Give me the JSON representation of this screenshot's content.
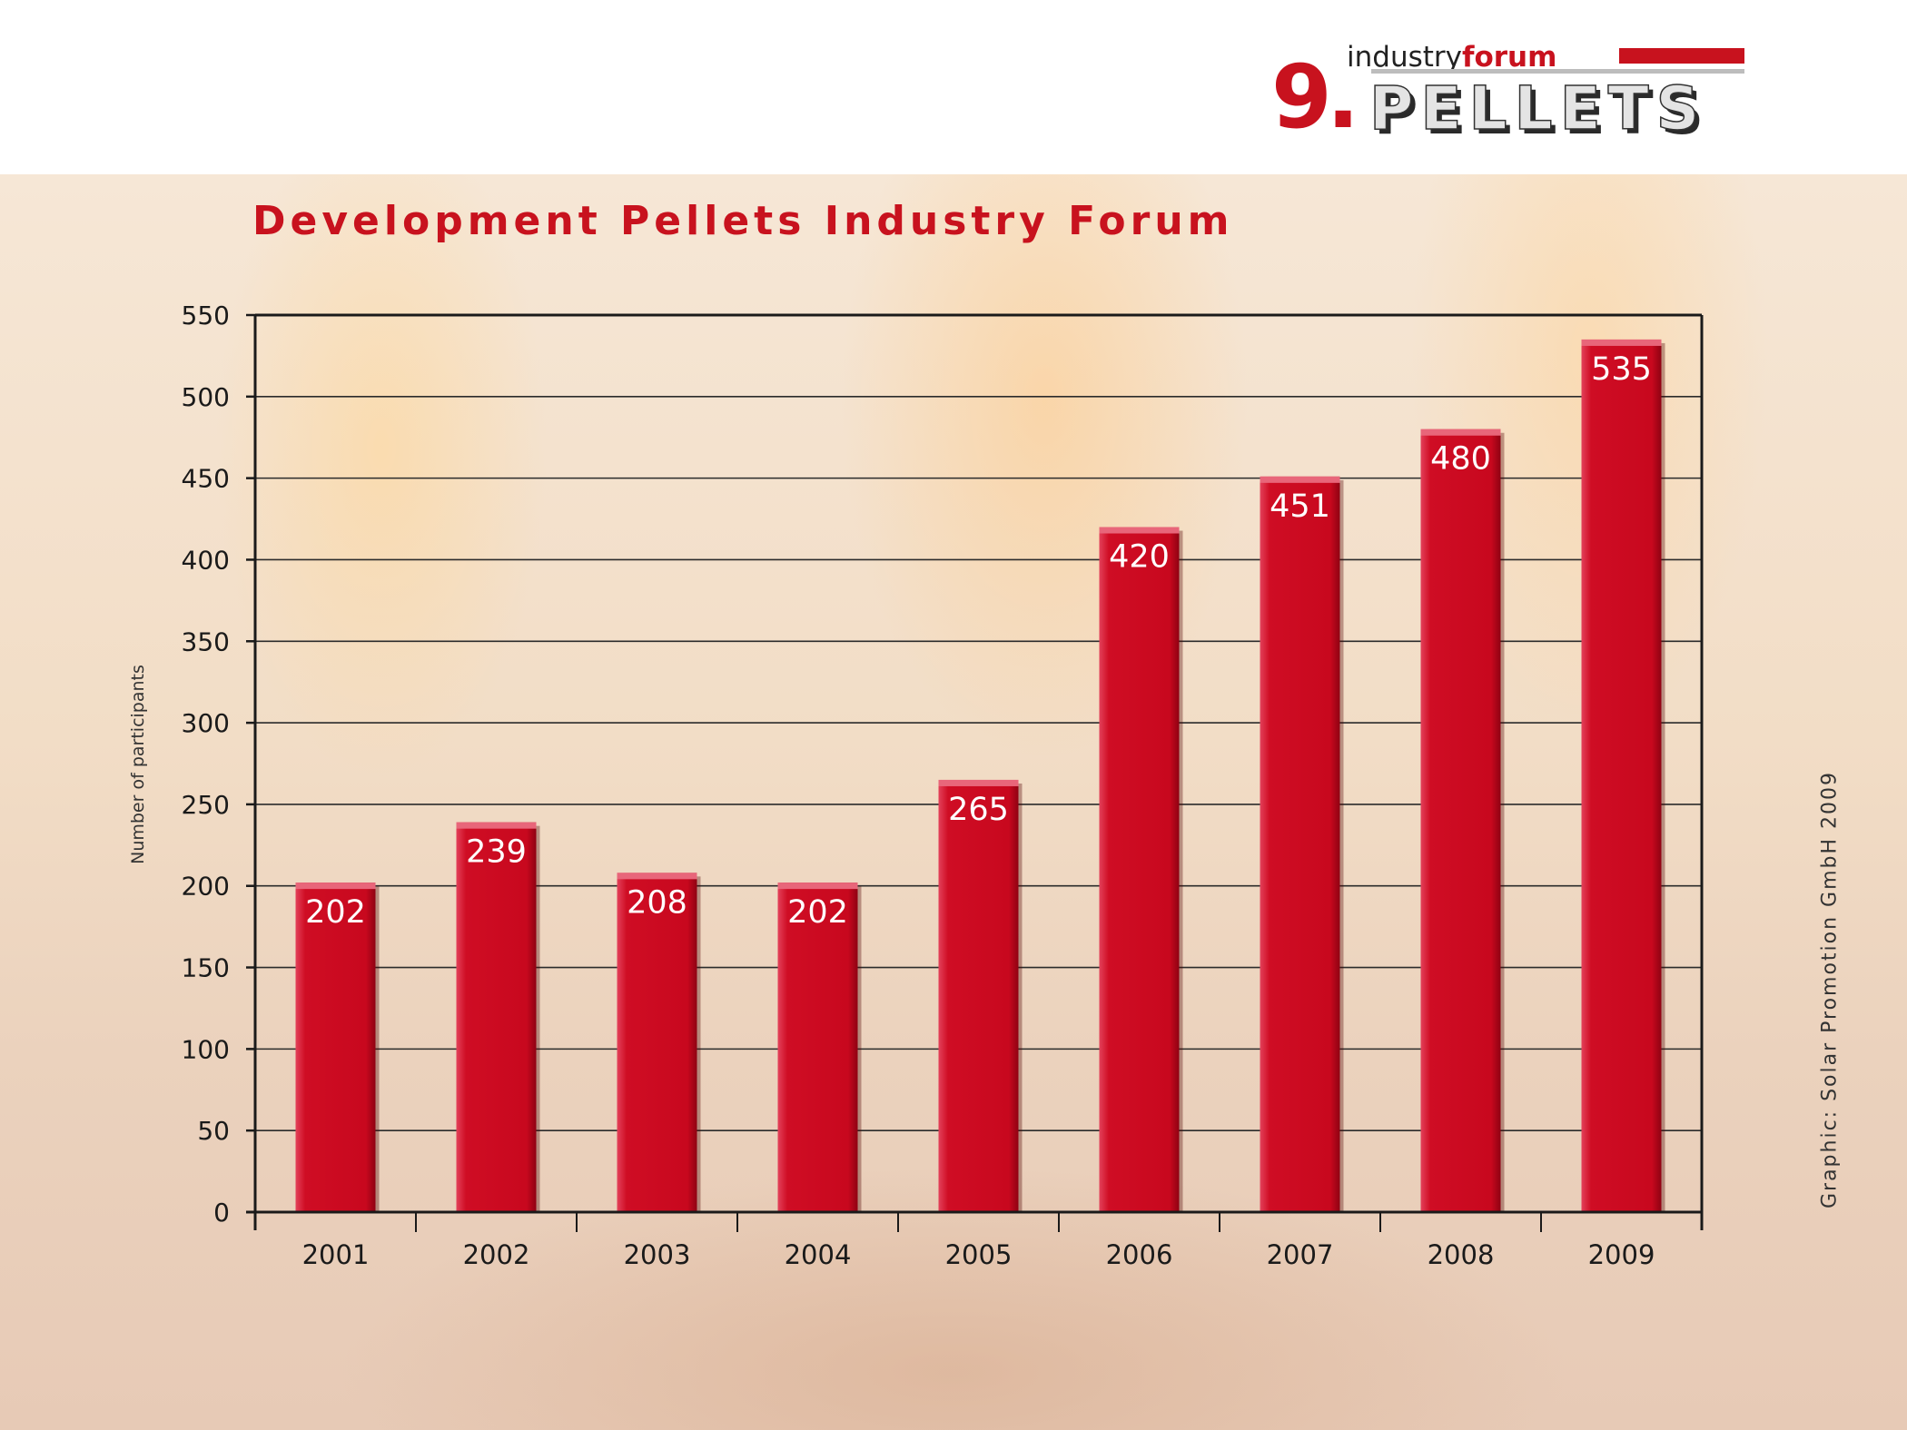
{
  "logo": {
    "number": "9.",
    "word1": "industry",
    "word2": "forum",
    "word3": "PELLETS"
  },
  "credit": "Graphic: Solar Promotion GmbH 2009",
  "colors": {
    "bar": "#cc0a20",
    "title": "#c8121e",
    "axis": "#1a1a1a"
  },
  "chart_data": {
    "type": "bar",
    "title": "Development Pellets Industry Forum",
    "xlabel": "",
    "ylabel": "Number of participants",
    "categories": [
      "2001",
      "2002",
      "2003",
      "2004",
      "2005",
      "2006",
      "2007",
      "2008",
      "2009"
    ],
    "values": [
      202,
      239,
      208,
      202,
      265,
      420,
      451,
      480,
      535
    ],
    "ylim": [
      0,
      550
    ],
    "yticks": [
      0,
      50,
      100,
      150,
      200,
      250,
      300,
      350,
      400,
      450,
      500,
      550
    ],
    "grid": true,
    "data_labels": true
  }
}
